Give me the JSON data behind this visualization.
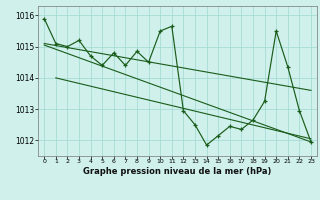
{
  "bg_color": "#cff0eb",
  "grid_color": "#9ed8d0",
  "line_color": "#1a5c1a",
  "xlabel": "Graphe pression niveau de la mer (hPa)",
  "ylim": [
    1011.5,
    1016.3
  ],
  "xlim": [
    -0.5,
    23.5
  ],
  "yticks": [
    1012,
    1013,
    1014,
    1015,
    1016
  ],
  "xticks": [
    0,
    1,
    2,
    3,
    4,
    5,
    6,
    7,
    8,
    9,
    10,
    11,
    12,
    13,
    14,
    15,
    16,
    17,
    18,
    19,
    20,
    21,
    22,
    23
  ],
  "series_main": [
    1015.9,
    1015.1,
    1015.0,
    1015.2,
    1014.7,
    1014.4,
    1014.8,
    1014.4,
    1014.85,
    1014.5,
    1015.5,
    1015.65,
    1012.95,
    1012.5,
    1011.85,
    1012.15,
    1012.45,
    1012.35,
    1012.65,
    1013.25,
    1015.5,
    1014.35,
    1012.95,
    1011.95
  ],
  "trend1_x": [
    0,
    23
  ],
  "trend1_y": [
    1015.1,
    1013.6
  ],
  "trend2_x": [
    0,
    23
  ],
  "trend2_y": [
    1015.05,
    1011.95
  ],
  "trend3_x": [
    1,
    23
  ],
  "trend3_y": [
    1014.0,
    1012.05
  ]
}
